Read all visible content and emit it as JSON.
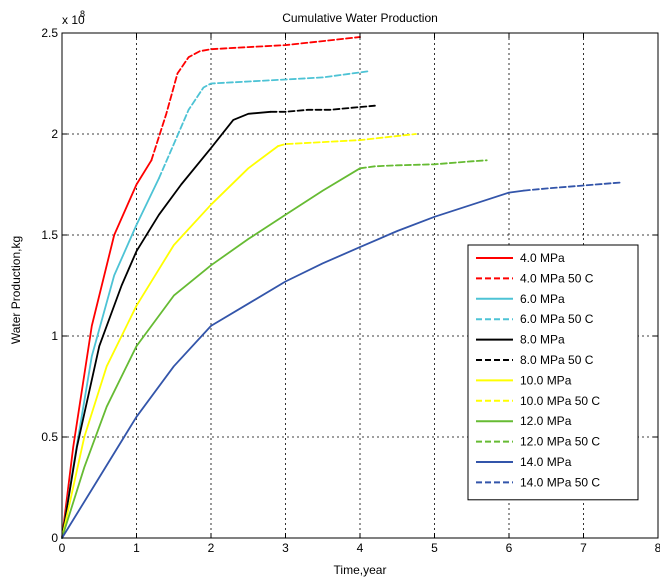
{
  "chart_data": {
    "type": "line",
    "title": "Cumulative Water Production",
    "xlabel": "Time,year",
    "ylabel": "Water Production,kg",
    "y_exponent_label": "x 10",
    "y_exponent_power": "8",
    "xlim": [
      0,
      8
    ],
    "ylim": [
      0,
      2.5
    ],
    "xticks": [
      "0",
      "1",
      "2",
      "3",
      "4",
      "5",
      "6",
      "7",
      "8"
    ],
    "yticks": [
      "0",
      "0.5",
      "1",
      "1.5",
      "2",
      "2.5"
    ],
    "grid": true,
    "legend_position": "right",
    "series": [
      {
        "name": "4.0 MPa",
        "color": "#ff0000",
        "dashed": false,
        "x": [
          0,
          0.15,
          0.4,
          0.7,
          1.0,
          1.2
        ],
        "y": [
          0,
          0.45,
          1.05,
          1.5,
          1.75,
          1.87
        ]
      },
      {
        "name": "4.0 MPa 50 C",
        "color": "#ff0000",
        "dashed": true,
        "x": [
          1.2,
          1.4,
          1.55,
          1.7,
          1.85,
          2.0,
          2.5,
          3.0,
          3.5,
          4.0
        ],
        "y": [
          1.87,
          2.1,
          2.3,
          2.38,
          2.41,
          2.42,
          2.43,
          2.44,
          2.46,
          2.48
        ]
      },
      {
        "name": "6.0 MPa",
        "color": "#4dc3d5",
        "dashed": false,
        "x": [
          0,
          0.15,
          0.4,
          0.7,
          1.0,
          1.3
        ],
        "y": [
          0,
          0.35,
          0.9,
          1.3,
          1.55,
          1.78
        ]
      },
      {
        "name": "6.0 MPa 50 C",
        "color": "#4dc3d5",
        "dashed": true,
        "x": [
          1.3,
          1.5,
          1.7,
          1.9,
          2.0,
          2.5,
          3.0,
          3.5,
          4.1
        ],
        "y": [
          1.78,
          1.95,
          2.12,
          2.23,
          2.25,
          2.26,
          2.27,
          2.28,
          2.31
        ]
      },
      {
        "name": "8.0 MPa",
        "color": "#000000",
        "dashed": false,
        "x": [
          0,
          0.2,
          0.5,
          0.8,
          1.0,
          1.3,
          1.6,
          2.0,
          2.3,
          2.5,
          2.8
        ],
        "y": [
          0,
          0.45,
          0.95,
          1.25,
          1.42,
          1.6,
          1.75,
          1.93,
          2.07,
          2.1,
          2.11
        ]
      },
      {
        "name": "8.0 MPa 50 C",
        "color": "#000000",
        "dashed": true,
        "x": [
          2.8,
          3.0,
          3.3,
          3.6,
          3.9,
          4.2
        ],
        "y": [
          2.11,
          2.11,
          2.12,
          2.12,
          2.13,
          2.14
        ]
      },
      {
        "name": "10.0 MPa",
        "color": "#ffff00",
        "dashed": false,
        "x": [
          0,
          0.3,
          0.6,
          1.0,
          1.5,
          2.0,
          2.5,
          2.9
        ],
        "y": [
          0,
          0.5,
          0.85,
          1.15,
          1.45,
          1.65,
          1.83,
          1.94
        ]
      },
      {
        "name": "10.0 MPa 50 C",
        "color": "#ffff00",
        "dashed": true,
        "x": [
          2.9,
          3.0,
          3.5,
          4.0,
          4.5,
          4.75
        ],
        "y": [
          1.94,
          1.95,
          1.96,
          1.97,
          1.99,
          2.0
        ]
      },
      {
        "name": "12.0 MPa",
        "color": "#66bb33",
        "dashed": false,
        "x": [
          0,
          0.3,
          0.6,
          1.0,
          1.5,
          2.0,
          2.5,
          3.0,
          3.5,
          4.0
        ],
        "y": [
          0,
          0.35,
          0.65,
          0.95,
          1.2,
          1.35,
          1.48,
          1.6,
          1.72,
          1.83
        ]
      },
      {
        "name": "12.0 MPa 50 C",
        "color": "#66bb33",
        "dashed": true,
        "x": [
          4.0,
          4.2,
          4.5,
          5.0,
          5.5,
          5.7
        ],
        "y": [
          1.83,
          1.84,
          1.845,
          1.85,
          1.865,
          1.87
        ]
      },
      {
        "name": "14.0 MPa",
        "color": "#3355aa",
        "dashed": false,
        "x": [
          0,
          0.5,
          1.0,
          1.5,
          2.0,
          2.5,
          3.0,
          3.5,
          4.0,
          4.5,
          5.0,
          5.5,
          6.0,
          6.2
        ],
        "y": [
          0,
          0.3,
          0.6,
          0.85,
          1.05,
          1.16,
          1.27,
          1.36,
          1.44,
          1.52,
          1.59,
          1.65,
          1.71,
          1.72
        ]
      },
      {
        "name": "14.0 MPa 50 C",
        "color": "#3355aa",
        "dashed": true,
        "x": [
          6.2,
          6.5,
          7.0,
          7.5
        ],
        "y": [
          1.72,
          1.73,
          1.745,
          1.76
        ]
      }
    ]
  }
}
